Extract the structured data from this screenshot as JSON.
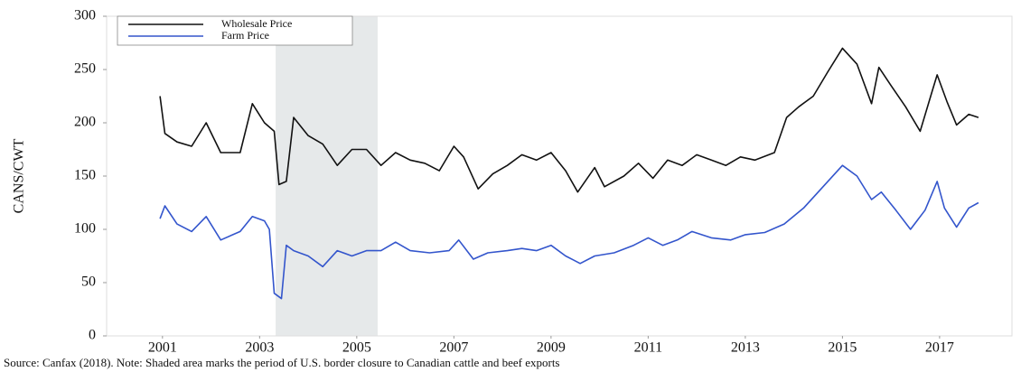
{
  "chart_data": {
    "type": "line",
    "y_label": "CANS/CWT",
    "note": "Source: Canfax (2018). Note: Shaded area marks the period of U.S. border closure to Canadian cattle and beef exports",
    "xlim": [
      1999.85,
      2018.49
    ],
    "xticks": [
      2001,
      2003,
      2005,
      2007,
      2009,
      2011,
      2013,
      2015,
      2017
    ],
    "ylim": [
      0,
      300
    ],
    "yticks": [
      0,
      50,
      100,
      150,
      200,
      250,
      300
    ],
    "grid": false,
    "legend": "upper left",
    "shaded_period": [
      2003.33,
      2005.43
    ],
    "series": [
      {
        "name": "Wholesale Price",
        "color": "#111111",
        "x": [
          2000.95,
          2001.05,
          2001.3,
          2001.6,
          2001.9,
          2002.2,
          2002.6,
          2002.85,
          2003.1,
          2003.3,
          2003.4,
          2003.55,
          2003.7,
          2004.0,
          2004.3,
          2004.6,
          2004.9,
          2005.2,
          2005.5,
          2005.8,
          2006.1,
          2006.4,
          2006.7,
          2007.0,
          2007.2,
          2007.5,
          2007.8,
          2008.1,
          2008.4,
          2008.7,
          2009.0,
          2009.3,
          2009.55,
          2009.9,
          2010.1,
          2010.5,
          2010.8,
          2011.1,
          2011.4,
          2011.7,
          2012.0,
          2012.3,
          2012.6,
          2012.9,
          2013.2,
          2013.6,
          2013.85,
          2014.1,
          2014.4,
          2014.7,
          2015.0,
          2015.3,
          2015.6,
          2015.75,
          2016.0,
          2016.3,
          2016.6,
          2016.85,
          2016.95,
          2017.15,
          2017.35,
          2017.6,
          2017.8
        ],
        "values": [
          225,
          190,
          182,
          178,
          200,
          172,
          172,
          218,
          200,
          192,
          142,
          145,
          205,
          188,
          180,
          160,
          175,
          175,
          160,
          172,
          165,
          162,
          155,
          178,
          168,
          138,
          152,
          160,
          170,
          165,
          172,
          155,
          135,
          158,
          140,
          150,
          162,
          148,
          165,
          160,
          170,
          165,
          160,
          168,
          165,
          172,
          205,
          215,
          225,
          248,
          270,
          255,
          218,
          252,
          235,
          215,
          192,
          230,
          245,
          220,
          198,
          208,
          205
        ]
      },
      {
        "name": "Farm Price",
        "color": "#3355cc",
        "x": [
          2000.95,
          2001.05,
          2001.3,
          2001.6,
          2001.9,
          2002.2,
          2002.6,
          2002.85,
          2003.1,
          2003.2,
          2003.3,
          2003.45,
          2003.55,
          2003.7,
          2004.0,
          2004.3,
          2004.6,
          2004.9,
          2005.2,
          2005.5,
          2005.8,
          2006.1,
          2006.5,
          2006.9,
          2007.1,
          2007.4,
          2007.7,
          2008.1,
          2008.4,
          2008.7,
          2009.0,
          2009.3,
          2009.6,
          2009.9,
          2010.3,
          2010.7,
          2011.0,
          2011.3,
          2011.6,
          2011.9,
          2012.3,
          2012.7,
          2013.0,
          2013.4,
          2013.8,
          2014.2,
          2014.6,
          2015.0,
          2015.3,
          2015.6,
          2015.8,
          2016.1,
          2016.4,
          2016.7,
          2016.95,
          2017.1,
          2017.35,
          2017.6,
          2017.8
        ],
        "values": [
          110,
          122,
          105,
          98,
          112,
          90,
          98,
          112,
          108,
          100,
          40,
          35,
          85,
          80,
          75,
          65,
          80,
          75,
          80,
          80,
          88,
          80,
          78,
          80,
          90,
          72,
          78,
          80,
          82,
          80,
          85,
          75,
          68,
          75,
          78,
          85,
          92,
          85,
          90,
          98,
          92,
          90,
          95,
          97,
          105,
          120,
          140,
          160,
          150,
          128,
          135,
          118,
          100,
          118,
          145,
          120,
          102,
          120,
          125
        ]
      }
    ]
  }
}
